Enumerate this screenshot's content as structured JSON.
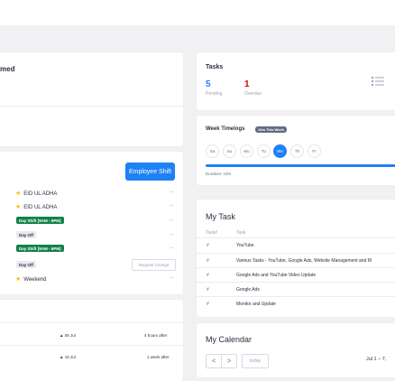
{
  "left_top": {
    "title_fragment": "med"
  },
  "shifts": {
    "button_label": "Employee Shift",
    "rows": [
      {
        "type": "holiday",
        "label": "EID UL ADHA",
        "value": "--"
      },
      {
        "type": "holiday",
        "label": "EID UL ADHA",
        "value": "--"
      },
      {
        "type": "shift",
        "label": "Day Shift [9AM - 6PM]",
        "value": "--"
      },
      {
        "type": "off",
        "label": "Day Off",
        "value": "--"
      },
      {
        "type": "shift",
        "label": "Day Shift [9AM - 6PM]",
        "value": "--"
      },
      {
        "type": "off",
        "label": "Day Off",
        "value": "Request Change"
      },
      {
        "type": "weekend",
        "label": "Weekend",
        "value": "--"
      }
    ]
  },
  "birthdays": [
    {
      "date": "05 Jul",
      "relative": "4 hours after"
    },
    {
      "date": "15 Jul",
      "relative": "1 week after"
    }
  ],
  "tasks": {
    "title": "Tasks",
    "pending_count": "5",
    "pending_label": "Pending",
    "overdue_count": "1",
    "overdue_label": "Overdue",
    "colors": {
      "pending": "#1d82f5",
      "overdue": "#d30000"
    }
  },
  "timelogs": {
    "title": "Week Timelogs",
    "badge": "10m This Week",
    "days": [
      "Sa",
      "Su",
      "Mo",
      "Tu",
      "We",
      "Th",
      "Fr"
    ],
    "active_day": "We",
    "duration": "Duration: 10m"
  },
  "my_task": {
    "title": "My Task",
    "col_num": "Task#",
    "col_task": "Task",
    "rows": [
      {
        "num": "#",
        "task": "YouTube"
      },
      {
        "num": "#",
        "task": "Various Tasks - YouTube, Google Ads, Website Management and M"
      },
      {
        "num": "#",
        "task": "Google Ads and YouTube Video Update"
      },
      {
        "num": "#",
        "task": "Google Ads"
      },
      {
        "num": "#",
        "task": "Monitor and Update"
      }
    ]
  },
  "calendar": {
    "title": "My Calendar",
    "prev": "<",
    "next": ">",
    "today": "today",
    "range": "Jul 1 – 7,"
  }
}
